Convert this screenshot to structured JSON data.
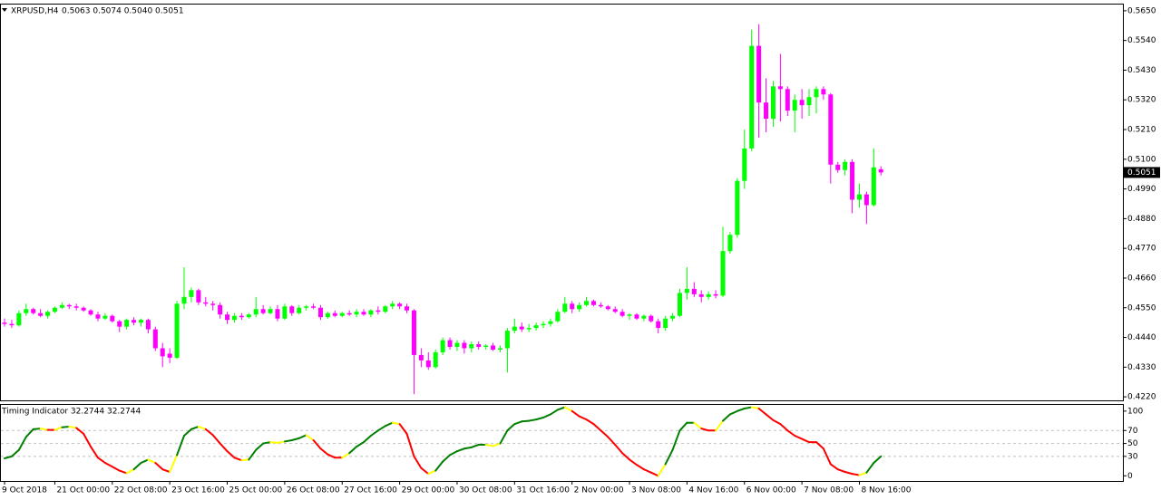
{
  "chart_data": [
    {
      "type": "candlestick",
      "title": "XRPUSD,H4",
      "ohlc_label": "0.5063 0.5074 0.5040 0.5051",
      "up_color": "#00ff00",
      "down_color": "#ff00ff",
      "current_price": {
        "value": 0.5051,
        "label": "0.5051"
      },
      "ylim": [
        0.4207,
        0.5673
      ],
      "yticks": [
        {
          "value": 0.565,
          "label": "0.5650"
        },
        {
          "value": 0.554,
          "label": "0.5540"
        },
        {
          "value": 0.543,
          "label": "0.5430"
        },
        {
          "value": 0.532,
          "label": "0.5320"
        },
        {
          "value": 0.521,
          "label": "0.5210"
        },
        {
          "value": 0.51,
          "label": "0.5100"
        },
        {
          "value": 0.499,
          "label": "0.4990"
        },
        {
          "value": 0.488,
          "label": "0.4880"
        },
        {
          "value": 0.477,
          "label": "0.4770"
        },
        {
          "value": 0.466,
          "label": "0.4660"
        },
        {
          "value": 0.455,
          "label": "0.4550"
        },
        {
          "value": 0.444,
          "label": "0.4440"
        },
        {
          "value": 0.433,
          "label": "0.4330"
        },
        {
          "value": 0.422,
          "label": "0.4220"
        }
      ],
      "categories": [
        "9 Oct 2018",
        null,
        null,
        null,
        null,
        null,
        null,
        "21 Oct 00:00",
        null,
        null,
        null,
        null,
        null,
        null,
        null,
        "22 Oct 08:00",
        null,
        null,
        null,
        null,
        null,
        null,
        null,
        "23 Oct 16:00",
        null,
        null,
        null,
        null,
        null,
        null,
        null,
        "25 Oct 00:00",
        null,
        null,
        null,
        null,
        null,
        null,
        null,
        "26 Oct 08:00",
        null,
        null,
        null,
        null,
        null,
        null,
        null,
        "27 Oct 16:00",
        null,
        null,
        null,
        null,
        null,
        null,
        null,
        "29 Oct 00:00",
        null,
        null,
        null,
        null,
        null,
        null,
        null,
        "30 Oct 08:00",
        null,
        null,
        null,
        null,
        null,
        null,
        null,
        "31 Oct 16:00",
        null,
        null,
        null,
        null,
        null,
        null,
        null,
        "2 Nov 00:00",
        null,
        null,
        null,
        null,
        null,
        null,
        null,
        "3 Nov 08:00",
        null,
        null,
        null,
        null,
        null,
        null,
        null,
        "4 Nov 16:00",
        null,
        null,
        null,
        null,
        null,
        null,
        null,
        "6 Nov 00:00",
        null,
        null,
        null,
        null,
        null,
        null,
        null,
        "7 Nov 08:00",
        null,
        null,
        null,
        null,
        null,
        null,
        null,
        "8 Nov 16:00",
        null,
        null,
        null
      ],
      "candles": [
        [
          0.4495,
          0.451,
          0.448,
          0.449
        ],
        [
          0.449,
          0.4505,
          0.4475,
          0.4485
        ],
        [
          0.4485,
          0.454,
          0.448,
          0.453
        ],
        [
          0.453,
          0.4565,
          0.452,
          0.4545
        ],
        [
          0.4545,
          0.455,
          0.4525,
          0.453
        ],
        [
          0.453,
          0.4545,
          0.4515,
          0.452
        ],
        [
          0.452,
          0.454,
          0.451,
          0.4535
        ],
        [
          0.4535,
          0.4555,
          0.453,
          0.455
        ],
        [
          0.455,
          0.457,
          0.4545,
          0.456
        ],
        [
          0.456,
          0.4565,
          0.4545,
          0.4555
        ],
        [
          0.4555,
          0.4565,
          0.454,
          0.455
        ],
        [
          0.455,
          0.4555,
          0.4535,
          0.454
        ],
        [
          0.454,
          0.4545,
          0.452,
          0.4525
        ],
        [
          0.4525,
          0.4535,
          0.45,
          0.451
        ],
        [
          0.451,
          0.453,
          0.4505,
          0.452
        ],
        [
          0.452,
          0.4525,
          0.4495,
          0.45
        ],
        [
          0.45,
          0.4505,
          0.446,
          0.448
        ],
        [
          0.448,
          0.451,
          0.447,
          0.4505
        ],
        [
          0.4505,
          0.4515,
          0.4485,
          0.4495
        ],
        [
          0.4495,
          0.451,
          0.448,
          0.4505
        ],
        [
          0.4505,
          0.451,
          0.4455,
          0.447
        ],
        [
          0.447,
          0.448,
          0.439,
          0.44
        ],
        [
          0.44,
          0.442,
          0.433,
          0.437
        ],
        [
          0.438,
          0.44,
          0.4345,
          0.4365
        ],
        [
          0.4365,
          0.4575,
          0.436,
          0.4565
        ],
        [
          0.4565,
          0.47,
          0.4545,
          0.459
        ],
        [
          0.459,
          0.4625,
          0.457,
          0.4615
        ],
        [
          0.4615,
          0.462,
          0.456,
          0.457
        ],
        [
          0.457,
          0.459,
          0.4555,
          0.4565
        ],
        [
          0.4565,
          0.4575,
          0.454,
          0.456
        ],
        [
          0.456,
          0.457,
          0.451,
          0.4525
        ],
        [
          0.4525,
          0.4535,
          0.449,
          0.4505
        ],
        [
          0.4505,
          0.453,
          0.4495,
          0.452
        ],
        [
          0.452,
          0.453,
          0.4505,
          0.4515
        ],
        [
          0.4515,
          0.453,
          0.451,
          0.4525
        ],
        [
          0.4525,
          0.459,
          0.4515,
          0.4545
        ],
        [
          0.4545,
          0.456,
          0.4525,
          0.453
        ],
        [
          0.453,
          0.4555,
          0.4525,
          0.4545
        ],
        [
          0.4545,
          0.456,
          0.45,
          0.451
        ],
        [
          0.451,
          0.4565,
          0.4505,
          0.4555
        ],
        [
          0.4555,
          0.456,
          0.452,
          0.453
        ],
        [
          0.453,
          0.456,
          0.4525,
          0.455
        ],
        [
          0.455,
          0.456,
          0.454,
          0.4555
        ],
        [
          0.4555,
          0.4565,
          0.4545,
          0.455
        ],
        [
          0.455,
          0.456,
          0.4505,
          0.4515
        ],
        [
          0.4515,
          0.4535,
          0.451,
          0.453
        ],
        [
          0.453,
          0.454,
          0.4515,
          0.452
        ],
        [
          0.452,
          0.4535,
          0.4515,
          0.453
        ],
        [
          0.453,
          0.454,
          0.452,
          0.4525
        ],
        [
          0.4525,
          0.4545,
          0.4515,
          0.4535
        ],
        [
          0.4535,
          0.4545,
          0.452,
          0.4525
        ],
        [
          0.4525,
          0.4545,
          0.4515,
          0.454
        ],
        [
          0.454,
          0.4555,
          0.4525,
          0.4535
        ],
        [
          0.4535,
          0.456,
          0.453,
          0.4555
        ],
        [
          0.4555,
          0.4575,
          0.4545,
          0.4565
        ],
        [
          0.4565,
          0.457,
          0.4545,
          0.4555
        ],
        [
          0.4555,
          0.4565,
          0.453,
          0.454
        ],
        [
          0.454,
          0.4545,
          0.423,
          0.4375
        ],
        [
          0.4375,
          0.44,
          0.433,
          0.4355
        ],
        [
          0.4355,
          0.4385,
          0.432,
          0.433
        ],
        [
          0.433,
          0.4395,
          0.4325,
          0.4385
        ],
        [
          0.4385,
          0.444,
          0.4375,
          0.443
        ],
        [
          0.443,
          0.444,
          0.4395,
          0.4405
        ],
        [
          0.4405,
          0.443,
          0.439,
          0.442
        ],
        [
          0.442,
          0.443,
          0.438,
          0.44
        ],
        [
          0.44,
          0.4425,
          0.4385,
          0.4415
        ],
        [
          0.4415,
          0.4425,
          0.4395,
          0.4405
        ],
        [
          0.4405,
          0.4415,
          0.4395,
          0.441
        ],
        [
          0.441,
          0.442,
          0.439,
          0.4395
        ],
        [
          0.4395,
          0.441,
          0.4385,
          0.44
        ],
        [
          0.44,
          0.4475,
          0.431,
          0.4465
        ],
        [
          0.4465,
          0.451,
          0.4455,
          0.448
        ],
        [
          0.448,
          0.4495,
          0.446,
          0.447
        ],
        [
          0.447,
          0.449,
          0.446,
          0.4475
        ],
        [
          0.4475,
          0.4495,
          0.4465,
          0.4485
        ],
        [
          0.4485,
          0.45,
          0.4475,
          0.449
        ],
        [
          0.449,
          0.451,
          0.448,
          0.45
        ],
        [
          0.45,
          0.4545,
          0.4495,
          0.4535
        ],
        [
          0.4535,
          0.459,
          0.453,
          0.4565
        ],
        [
          0.4565,
          0.4575,
          0.453,
          0.4545
        ],
        [
          0.4545,
          0.457,
          0.4535,
          0.456
        ],
        [
          0.456,
          0.459,
          0.4555,
          0.4575
        ],
        [
          0.4575,
          0.458,
          0.4555,
          0.456
        ],
        [
          0.456,
          0.457,
          0.455,
          0.4555
        ],
        [
          0.4555,
          0.456,
          0.454,
          0.4545
        ],
        [
          0.4545,
          0.4555,
          0.453,
          0.4535
        ],
        [
          0.4535,
          0.4545,
          0.4515,
          0.452
        ],
        [
          0.452,
          0.453,
          0.4505,
          0.4525
        ],
        [
          0.4525,
          0.453,
          0.4505,
          0.451
        ],
        [
          0.451,
          0.4525,
          0.45,
          0.452
        ],
        [
          0.452,
          0.4525,
          0.4495,
          0.45
        ],
        [
          0.45,
          0.451,
          0.4455,
          0.4475
        ],
        [
          0.4475,
          0.452,
          0.4465,
          0.451
        ],
        [
          0.451,
          0.453,
          0.45,
          0.452
        ],
        [
          0.452,
          0.462,
          0.4515,
          0.4605
        ],
        [
          0.4605,
          0.47,
          0.458,
          0.462
        ],
        [
          0.462,
          0.4645,
          0.459,
          0.46
        ],
        [
          0.46,
          0.4615,
          0.457,
          0.459
        ],
        [
          0.459,
          0.461,
          0.458,
          0.46
        ],
        [
          0.46,
          0.4615,
          0.4585,
          0.4595
        ],
        [
          0.4595,
          0.485,
          0.459,
          0.476
        ],
        [
          0.476,
          0.483,
          0.475,
          0.482
        ],
        [
          0.482,
          0.503,
          0.481,
          0.502
        ],
        [
          0.502,
          0.521,
          0.499,
          0.514
        ],
        [
          0.514,
          0.558,
          0.513,
          0.552
        ],
        [
          0.552,
          0.56,
          0.518,
          0.531
        ],
        [
          0.531,
          0.54,
          0.52,
          0.525
        ],
        [
          0.525,
          0.539,
          0.522,
          0.537
        ],
        [
          0.537,
          0.549,
          0.524,
          0.536
        ],
        [
          0.536,
          0.537,
          0.526,
          0.528
        ],
        [
          0.528,
          0.534,
          0.52,
          0.532
        ],
        [
          0.532,
          0.536,
          0.525,
          0.53
        ],
        [
          0.53,
          0.536,
          0.526,
          0.533
        ],
        [
          0.533,
          0.537,
          0.527,
          0.536
        ],
        [
          0.536,
          0.537,
          0.532,
          0.534
        ],
        [
          0.534,
          0.5345,
          0.501,
          0.508
        ],
        [
          0.508,
          0.509,
          0.505,
          0.506
        ],
        [
          0.506,
          0.51,
          0.504,
          0.509
        ],
        [
          0.509,
          0.51,
          0.49,
          0.495
        ],
        [
          0.495,
          0.501,
          0.492,
          0.497
        ],
        [
          0.497,
          0.498,
          0.486,
          0.493
        ],
        [
          0.493,
          0.514,
          0.4925,
          0.507
        ],
        [
          0.5063,
          0.5074,
          0.504,
          0.5051
        ]
      ]
    },
    {
      "type": "line",
      "title": "Timing Indicator 32.2744 32.2744",
      "up_color": "#007f00",
      "down_color": "#ff0000",
      "turn_color": "#ffff00",
      "ylim": [
        -8,
        111
      ],
      "yticks": [
        100,
        70,
        50,
        30,
        0
      ],
      "levels": [
        70,
        50,
        30
      ],
      "values": [
        27,
        30,
        40,
        60,
        72,
        73,
        71,
        71,
        75,
        76,
        74,
        65,
        45,
        28,
        20,
        14,
        8,
        4,
        10,
        20,
        25,
        20,
        10,
        6,
        32,
        62,
        72,
        76,
        72,
        63,
        50,
        38,
        28,
        24,
        25,
        40,
        50,
        52,
        51,
        53,
        55,
        58,
        63,
        55,
        42,
        33,
        28,
        28,
        35,
        45,
        52,
        62,
        70,
        77,
        82,
        80,
        65,
        30,
        12,
        3,
        8,
        22,
        32,
        38,
        42,
        44,
        48,
        48,
        46,
        50,
        70,
        80,
        84,
        85,
        87,
        90,
        95,
        102,
        106,
        100,
        92,
        87,
        80,
        70,
        60,
        48,
        35,
        25,
        17,
        10,
        5,
        0,
        18,
        40,
        70,
        82,
        82,
        73,
        70,
        70,
        85,
        95,
        100,
        104,
        106,
        104,
        95,
        86,
        80,
        70,
        62,
        57,
        52,
        52,
        42,
        18,
        10,
        6,
        3,
        1,
        5,
        20,
        30
      ]
    }
  ]
}
